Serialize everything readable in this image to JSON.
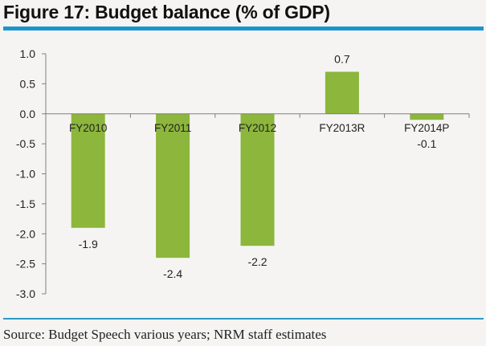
{
  "colors": {
    "bar": "#8cb63c",
    "rule": "#1b95cf",
    "rule_bottom": "#2c98c4",
    "axis": "#7f7f7f"
  },
  "chart_data": {
    "type": "bar",
    "title": "Figure 17: Budget balance (% of GDP)",
    "xlabel": "",
    "ylabel": "",
    "categories": [
      "FY2010",
      "FY2011",
      "FY2012",
      "FY2013R",
      "FY2014P"
    ],
    "values": [
      -1.9,
      -2.4,
      -2.2,
      0.7,
      -0.1
    ],
    "data_labels": [
      "-1.9",
      "-2.4",
      "-2.2",
      "0.7",
      "-0.1"
    ],
    "ylim": [
      -3.0,
      1.0
    ],
    "yticks": [
      1.0,
      0.5,
      0.0,
      -0.5,
      -1.0,
      -1.5,
      -2.0,
      -2.5,
      -3.0
    ],
    "ytick_labels": [
      "1.0",
      "0.5",
      "0.0",
      "-0.5",
      "-1.0",
      "-1.5",
      "-2.0",
      "-2.5",
      "-3.0"
    ],
    "grid": false,
    "legend": "none",
    "source": "Source: Budget Speech various years; NRM staff estimates"
  }
}
